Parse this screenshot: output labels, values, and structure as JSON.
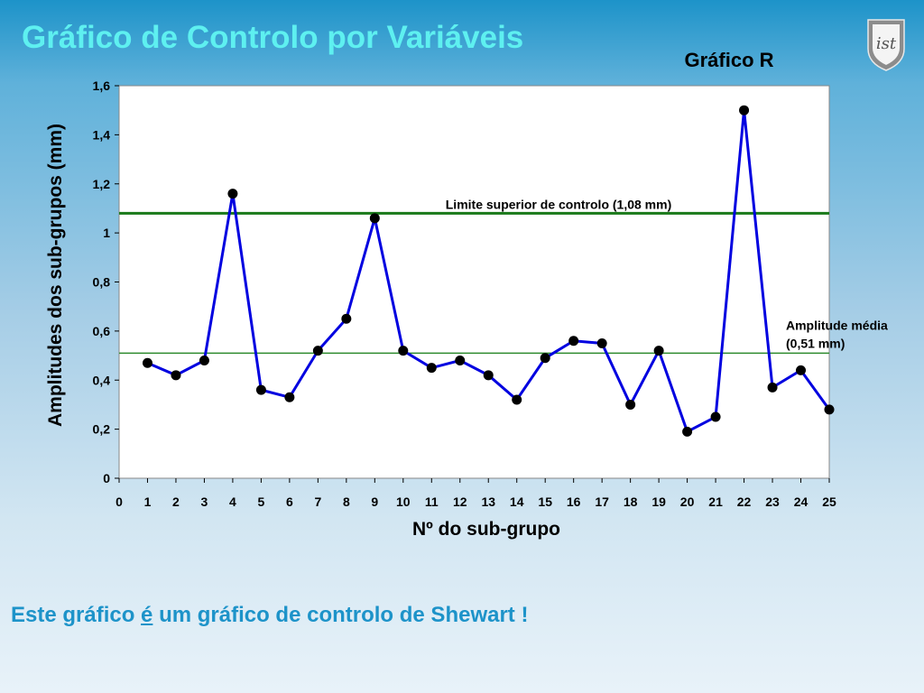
{
  "slide": {
    "title": "Gráfico de Controlo por Variáveis",
    "footer_part1": "Este gráfico ",
    "footer_emph": "é",
    "footer_part2": " um gráfico de controlo de Shewart !",
    "logo_text": "ist"
  },
  "chart_data": {
    "type": "line",
    "title": "Gráfico R",
    "xlabel": "Nº do sub-grupo",
    "ylabel": "Amplitudes dos sub-grupos (mm)",
    "xlim": [
      0,
      25
    ],
    "ylim": [
      0,
      1.6
    ],
    "x_ticks": [
      "0",
      "1",
      "2",
      "3",
      "4",
      "5",
      "6",
      "7",
      "8",
      "9",
      "10",
      "11",
      "12",
      "13",
      "14",
      "15",
      "16",
      "17",
      "18",
      "19",
      "20",
      "21",
      "22",
      "23",
      "24",
      "25"
    ],
    "y_ticks": [
      {
        "value": 0,
        "label": "0"
      },
      {
        "value": 0.2,
        "label": "0,2"
      },
      {
        "value": 0.4,
        "label": "0,4"
      },
      {
        "value": 0.6,
        "label": "0,6"
      },
      {
        "value": 0.8,
        "label": "0,8"
      },
      {
        "value": 1.0,
        "label": "1"
      },
      {
        "value": 1.2,
        "label": "1,2"
      },
      {
        "value": 1.4,
        "label": "1,4"
      },
      {
        "value": 1.6,
        "label": "1,6"
      }
    ],
    "grid": false,
    "series": [
      {
        "x": [
          1,
          2,
          3,
          4,
          5,
          6,
          7,
          8,
          9,
          10,
          11,
          12,
          13,
          14,
          15,
          16,
          17,
          18,
          19,
          20,
          21,
          22,
          23,
          24,
          25
        ],
        "values": [
          0.47,
          0.42,
          0.48,
          1.16,
          0.36,
          0.33,
          0.52,
          0.65,
          1.06,
          0.52,
          0.45,
          0.48,
          0.42,
          0.32,
          0.49,
          0.56,
          0.55,
          0.3,
          0.52,
          0.19,
          0.25,
          1.5,
          0.37,
          0.44,
          0.28
        ],
        "color": "#0000e0"
      }
    ],
    "reference_lines": [
      {
        "value": 1.08,
        "label": "Limite superior de controlo (1,08 mm)",
        "color": "#1a7a1a"
      },
      {
        "value": 0.51,
        "label_line1": "Amplitude média",
        "label_line2": "(0,51 mm)",
        "color": "#2e8b2e"
      }
    ],
    "plot_background": "#ffffff"
  }
}
